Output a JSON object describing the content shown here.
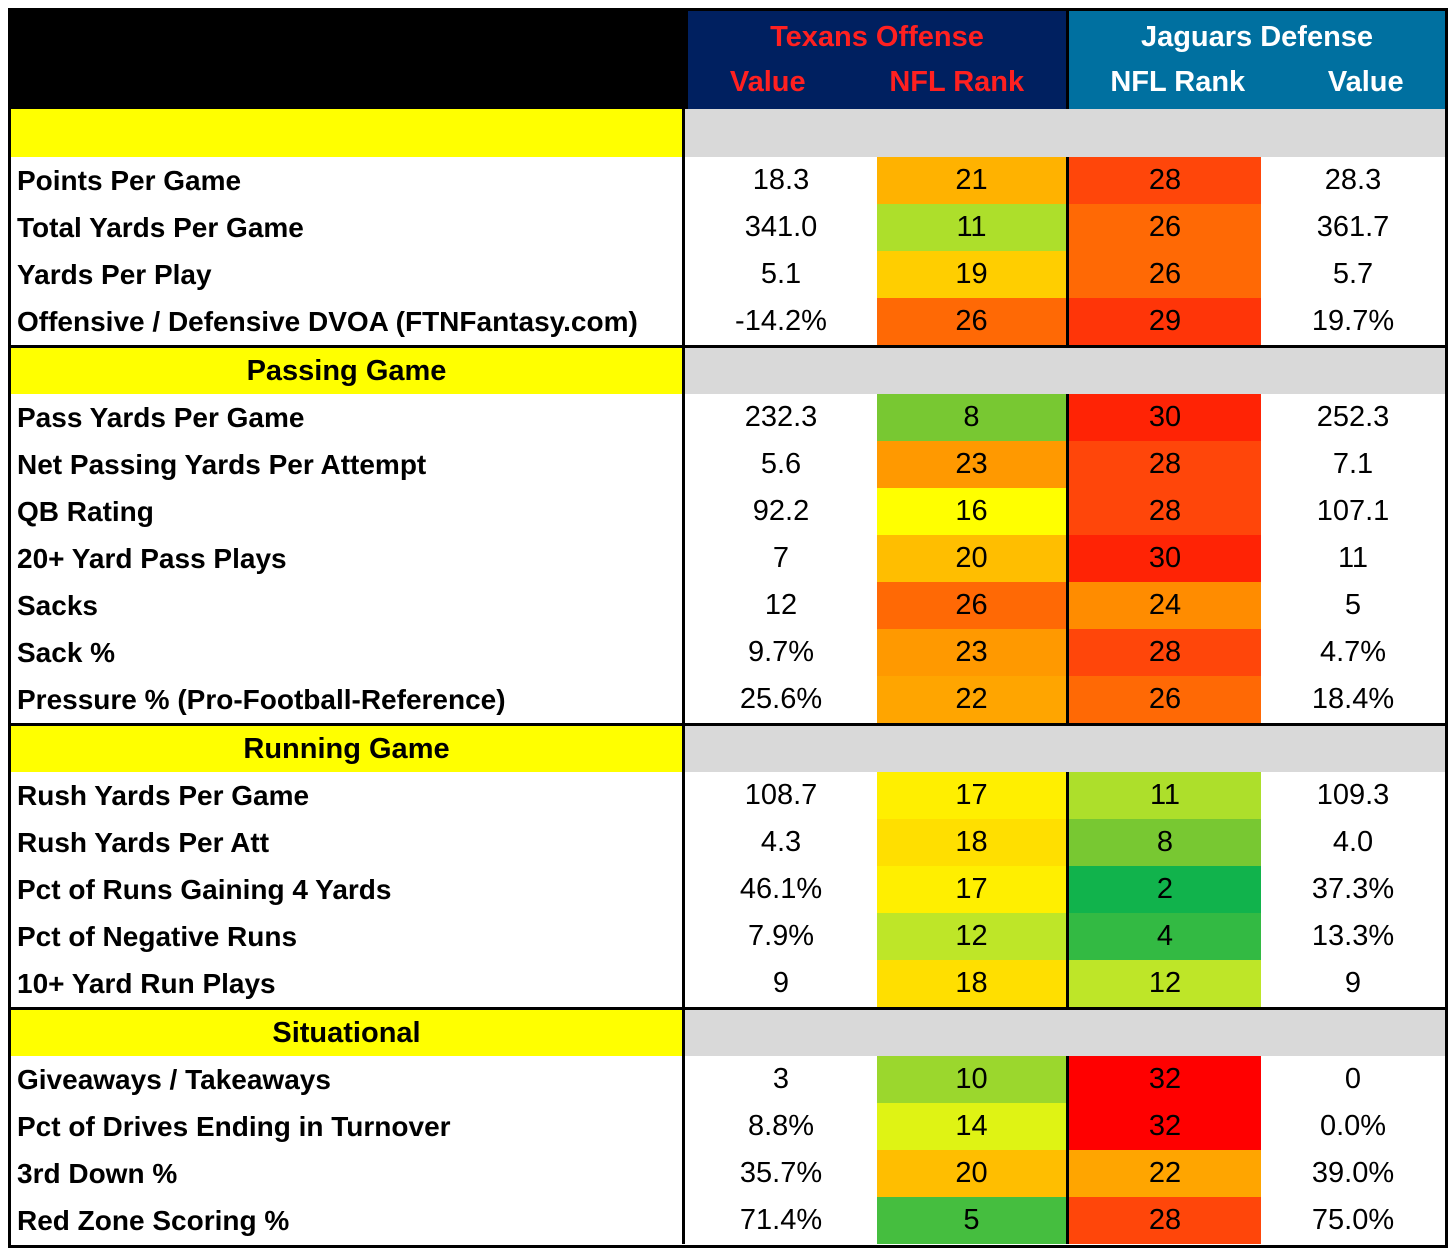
{
  "header": {
    "texans": {
      "team": "Texans Offense",
      "col1": "Value",
      "col2": "NFL Rank"
    },
    "jaguars": {
      "team": "Jaguars Defense",
      "col1": "NFL Rank",
      "col2": "Value"
    }
  },
  "colors": {
    "section_label": "#ffff00",
    "section_fill": "#d9d9d9",
    "texans_header": "#002060",
    "jaguars_header": "#0070a0"
  },
  "sections": [
    {
      "title": "",
      "rows": [
        {
          "label": "Points Per Game",
          "tex_value": "18.3",
          "tex_rank": "21",
          "jag_rank": "28",
          "jag_value": "28.3"
        },
        {
          "label": "Total Yards Per Game",
          "tex_value": "341.0",
          "tex_rank": "11",
          "jag_rank": "26",
          "jag_value": "361.7"
        },
        {
          "label": "Yards Per Play",
          "tex_value": "5.1",
          "tex_rank": "19",
          "jag_rank": "26",
          "jag_value": "5.7"
        },
        {
          "label": "Offensive / Defensive DVOA (FTNFantasy.com)",
          "tex_value": "-14.2%",
          "tex_rank": "26",
          "jag_rank": "29",
          "jag_value": "19.7%"
        }
      ]
    },
    {
      "title": "Passing Game",
      "rows": [
        {
          "label": "Pass Yards Per Game",
          "tex_value": "232.3",
          "tex_rank": "8",
          "jag_rank": "30",
          "jag_value": "252.3"
        },
        {
          "label": "Net Passing Yards Per Attempt",
          "tex_value": "5.6",
          "tex_rank": "23",
          "jag_rank": "28",
          "jag_value": "7.1"
        },
        {
          "label": "QB Rating",
          "tex_value": "92.2",
          "tex_rank": "16",
          "jag_rank": "28",
          "jag_value": "107.1"
        },
        {
          "label": "20+ Yard Pass Plays",
          "tex_value": "7",
          "tex_rank": "20",
          "jag_rank": "30",
          "jag_value": "11"
        },
        {
          "label": "Sacks",
          "tex_value": "12",
          "tex_rank": "26",
          "jag_rank": "24",
          "jag_value": "5"
        },
        {
          "label": "Sack %",
          "tex_value": "9.7%",
          "tex_rank": "23",
          "jag_rank": "28",
          "jag_value": "4.7%"
        },
        {
          "label": "Pressure % (Pro-Football-Reference)",
          "tex_value": "25.6%",
          "tex_rank": "22",
          "jag_rank": "26",
          "jag_value": "18.4%"
        }
      ]
    },
    {
      "title": "Running Game",
      "rows": [
        {
          "label": "Rush Yards Per Game",
          "tex_value": "108.7",
          "tex_rank": "17",
          "jag_rank": "11",
          "jag_value": "109.3"
        },
        {
          "label": "Rush Yards Per Att",
          "tex_value": "4.3",
          "tex_rank": "18",
          "jag_rank": "8",
          "jag_value": "4.0"
        },
        {
          "label": "Pct of Runs Gaining 4 Yards",
          "tex_value": "46.1%",
          "tex_rank": "17",
          "jag_rank": "2",
          "jag_value": "37.3%"
        },
        {
          "label": "Pct of Negative Runs",
          "tex_value": "7.9%",
          "tex_rank": "12",
          "jag_rank": "4",
          "jag_value": "13.3%"
        },
        {
          "label": "10+ Yard Run Plays",
          "tex_value": "9",
          "tex_rank": "18",
          "jag_rank": "12",
          "jag_value": "9"
        }
      ]
    },
    {
      "title": "Situational",
      "rows": [
        {
          "label": "Giveaways / Takeaways",
          "tex_value": "3",
          "tex_rank": "10",
          "jag_rank": "32",
          "jag_value": "0"
        },
        {
          "label": "Pct of Drives Ending in Turnover",
          "tex_value": "8.8%",
          "tex_rank": "14",
          "jag_rank": "32",
          "jag_value": "0.0%"
        },
        {
          "label": "3rd Down %",
          "tex_value": "35.7%",
          "tex_rank": "20",
          "jag_rank": "22",
          "jag_value": "39.0%"
        },
        {
          "label": "Red Zone Scoring %",
          "tex_value": "71.4%",
          "tex_rank": "5",
          "jag_rank": "28",
          "jag_value": "75.0%"
        }
      ]
    }
  ]
}
